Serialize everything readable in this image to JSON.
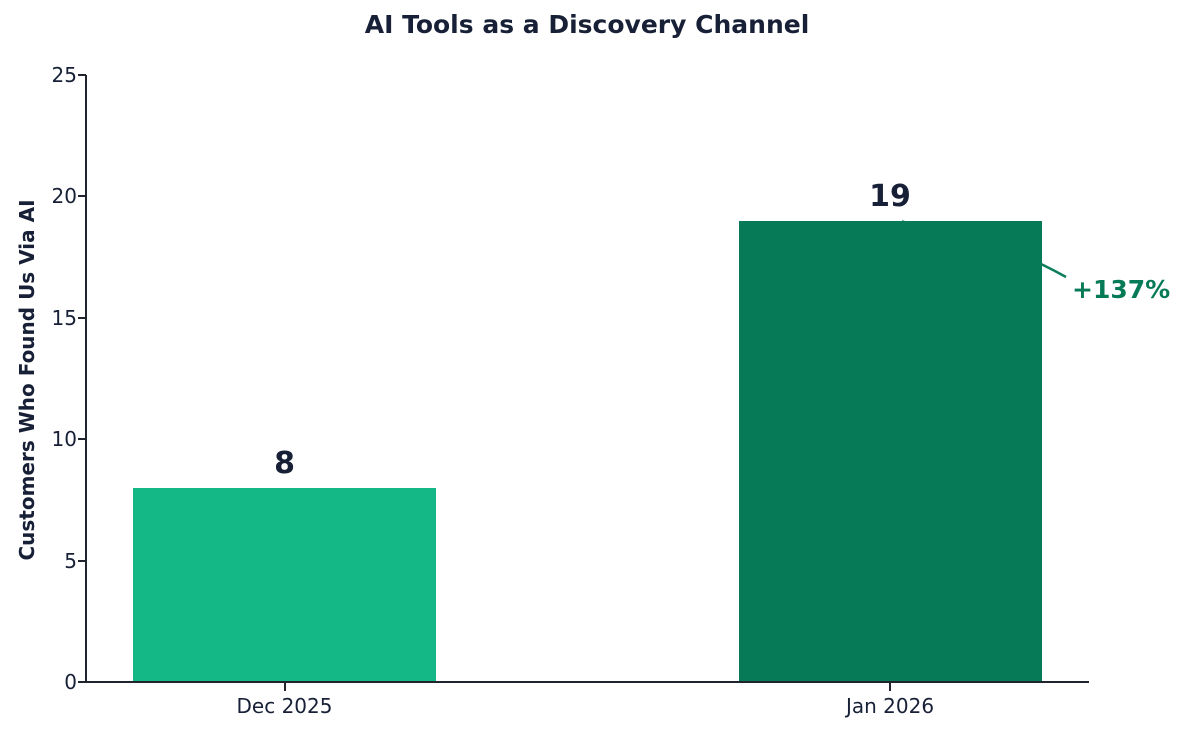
{
  "chart_data": {
    "type": "bar",
    "title": "AI Tools as a Discovery Channel",
    "ylabel": "Customers Who Found Us Via AI",
    "xlabel": "",
    "categories": [
      "Dec 2025",
      "Jan 2026"
    ],
    "values": [
      8,
      19
    ],
    "value_labels": [
      "8",
      "19"
    ],
    "ylim": [
      0,
      25
    ],
    "yticks": [
      0,
      5,
      10,
      15,
      20,
      25
    ],
    "grid": false,
    "legend": null,
    "bar_colors": [
      "#13b886",
      "#067a57"
    ],
    "annotation": {
      "text": "+137%",
      "color": "#067a57",
      "line_color": "#0b7d5a",
      "points_to_category": "Jan 2026"
    },
    "text_color": "#172036",
    "axis_color": "#20242e"
  }
}
